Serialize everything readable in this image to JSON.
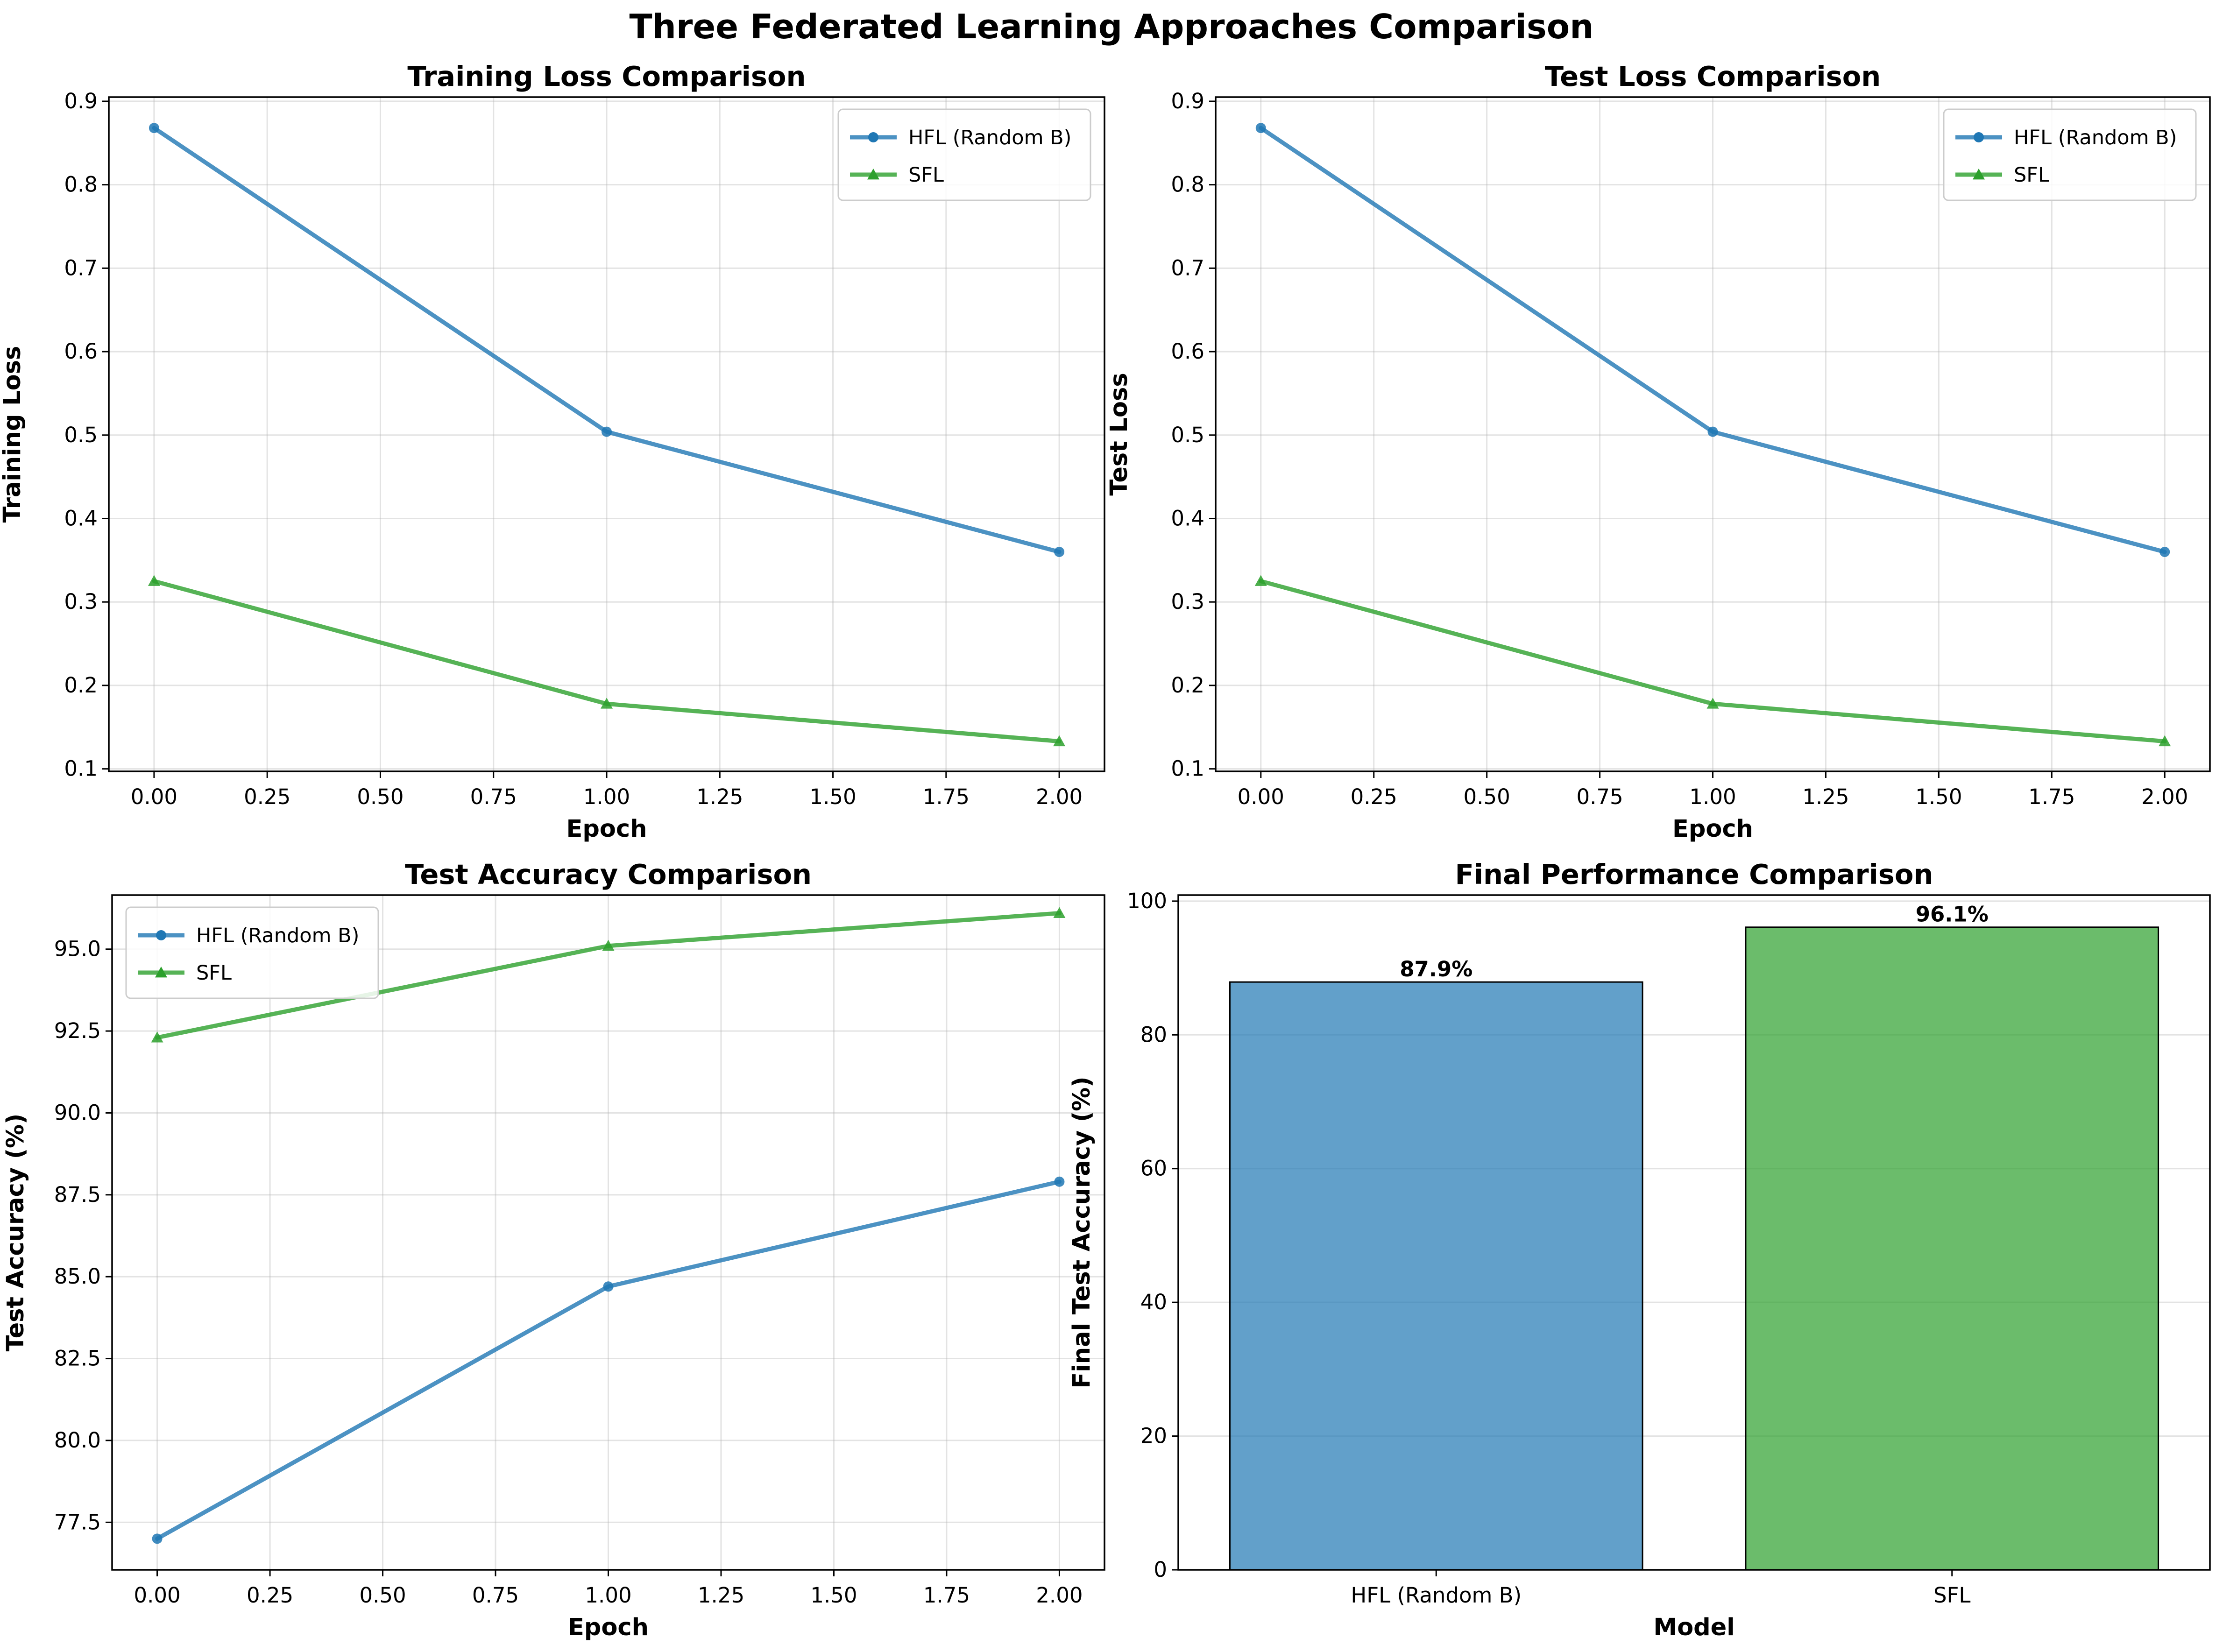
{
  "suptitle": "Three Federated Learning Approaches Comparison",
  "colors": {
    "hfl": "#1f77b4",
    "sfl": "#2ca02c"
  },
  "chart_data": [
    {
      "type": "line",
      "title": "Training Loss Comparison",
      "xlabel": "Epoch",
      "ylabel": "Training Loss",
      "x": [
        0,
        1,
        2
      ],
      "xlim": [
        -0.1,
        2.1
      ],
      "ylim": [
        0.097,
        0.905
      ],
      "xticks": [
        0,
        0.25,
        0.5,
        0.75,
        1,
        1.25,
        1.5,
        1.75,
        2
      ],
      "xtick_labels": [
        "0.00",
        "0.25",
        "0.50",
        "0.75",
        "1.00",
        "1.25",
        "1.50",
        "1.75",
        "2.00"
      ],
      "yticks": [
        0.1,
        0.2,
        0.3,
        0.4,
        0.5,
        0.6,
        0.7,
        0.8,
        0.9
      ],
      "ytick_labels": [
        "0.1",
        "0.2",
        "0.3",
        "0.4",
        "0.5",
        "0.6",
        "0.7",
        "0.8",
        "0.9"
      ],
      "grid": true,
      "legend_position": "upper right",
      "series": [
        {
          "name": "HFL (Random B)",
          "color": "#1f77b4",
          "marker": "circle",
          "values": [
            0.868,
            0.504,
            0.36
          ]
        },
        {
          "name": "SFL",
          "color": "#2ca02c",
          "marker": "triangle",
          "values": [
            0.325,
            0.178,
            0.133
          ]
        }
      ]
    },
    {
      "type": "line",
      "title": "Test Loss Comparison",
      "xlabel": "Epoch",
      "ylabel": "Test Loss",
      "x": [
        0,
        1,
        2
      ],
      "xlim": [
        -0.1,
        2.1
      ],
      "ylim": [
        0.097,
        0.905
      ],
      "xticks": [
        0,
        0.25,
        0.5,
        0.75,
        1,
        1.25,
        1.5,
        1.75,
        2
      ],
      "xtick_labels": [
        "0.00",
        "0.25",
        "0.50",
        "0.75",
        "1.00",
        "1.25",
        "1.50",
        "1.75",
        "2.00"
      ],
      "yticks": [
        0.1,
        0.2,
        0.3,
        0.4,
        0.5,
        0.6,
        0.7,
        0.8,
        0.9
      ],
      "ytick_labels": [
        "0.1",
        "0.2",
        "0.3",
        "0.4",
        "0.5",
        "0.6",
        "0.7",
        "0.8",
        "0.9"
      ],
      "grid": true,
      "legend_position": "upper right",
      "series": [
        {
          "name": "HFL (Random B)",
          "color": "#1f77b4",
          "marker": "circle",
          "values": [
            0.868,
            0.504,
            0.36
          ]
        },
        {
          "name": "SFL",
          "color": "#2ca02c",
          "marker": "triangle",
          "values": [
            0.325,
            0.178,
            0.133
          ]
        }
      ]
    },
    {
      "type": "line",
      "title": "Test Accuracy Comparison",
      "xlabel": "Epoch",
      "ylabel": "Test Accuracy (%)",
      "x": [
        0,
        1,
        2
      ],
      "xlim": [
        -0.1,
        2.1
      ],
      "ylim": [
        76.05,
        96.65
      ],
      "xticks": [
        0,
        0.25,
        0.5,
        0.75,
        1,
        1.25,
        1.5,
        1.75,
        2
      ],
      "xtick_labels": [
        "0.00",
        "0.25",
        "0.50",
        "0.75",
        "1.00",
        "1.25",
        "1.50",
        "1.75",
        "2.00"
      ],
      "yticks": [
        77.5,
        80,
        82.5,
        85,
        87.5,
        90,
        92.5,
        95
      ],
      "ytick_labels": [
        "77.5",
        "80.0",
        "82.5",
        "85.0",
        "87.5",
        "90.0",
        "92.5",
        "95.0"
      ],
      "grid": true,
      "legend_position": "upper left",
      "series": [
        {
          "name": "HFL (Random B)",
          "color": "#1f77b4",
          "marker": "circle",
          "values": [
            77.0,
            84.7,
            87.9
          ]
        },
        {
          "name": "SFL",
          "color": "#2ca02c",
          "marker": "triangle",
          "values": [
            92.3,
            95.1,
            96.1
          ]
        }
      ]
    },
    {
      "type": "bar",
      "title": "Final Performance Comparison",
      "xlabel": "Model",
      "ylabel": "Final Test Accuracy (%)",
      "categories": [
        "HFL (Random B)",
        "SFL"
      ],
      "values": [
        87.9,
        96.1
      ],
      "data_labels": [
        "87.9%",
        "96.1%"
      ],
      "colors": [
        "#1f77b4",
        "#2ca02c"
      ],
      "ylim": [
        0,
        100.9
      ],
      "yticks": [
        0,
        20,
        40,
        60,
        80,
        100
      ],
      "ytick_labels": [
        "0",
        "20",
        "40",
        "60",
        "80",
        "100"
      ],
      "grid": true
    }
  ]
}
